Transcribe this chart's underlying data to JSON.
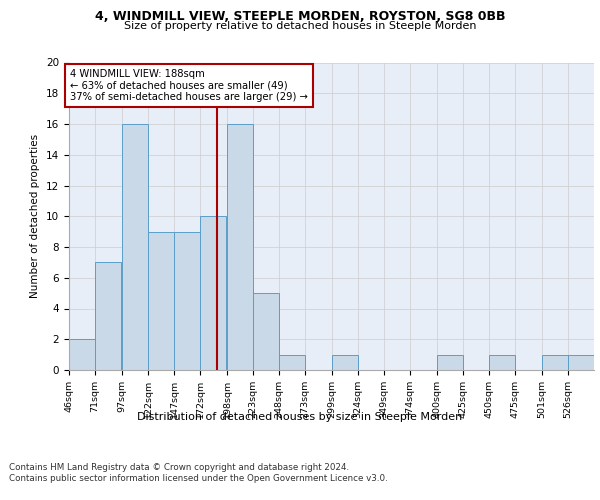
{
  "title1": "4, WINDMILL VIEW, STEEPLE MORDEN, ROYSTON, SG8 0BB",
  "title2": "Size of property relative to detached houses in Steeple Morden",
  "xlabel": "Distribution of detached houses by size in Steeple Morden",
  "ylabel": "Number of detached properties",
  "bins": [
    46,
    71,
    97,
    122,
    147,
    172,
    198,
    223,
    248,
    273,
    299,
    324,
    349,
    374,
    400,
    425,
    450,
    475,
    501,
    526,
    551
  ],
  "counts": [
    2,
    7,
    16,
    9,
    9,
    10,
    16,
    5,
    1,
    0,
    1,
    0,
    0,
    0,
    1,
    0,
    1,
    0,
    1,
    1
  ],
  "bar_color": "#c9d9e8",
  "bar_edge_color": "#5a9ec9",
  "grid_color": "#cccccc",
  "vline_x": 188,
  "vline_color": "#aa0000",
  "annotation_line1": "4 WINDMILL VIEW: 188sqm",
  "annotation_line2": "← 63% of detached houses are smaller (49)",
  "annotation_line3": "37% of semi-detached houses are larger (29) →",
  "annotation_box_color": "#aa0000",
  "ylim": [
    0,
    20
  ],
  "yticks": [
    0,
    2,
    4,
    6,
    8,
    10,
    12,
    14,
    16,
    18,
    20
  ],
  "footer1": "Contains HM Land Registry data © Crown copyright and database right 2024.",
  "footer2": "Contains public sector information licensed under the Open Government Licence v3.0.",
  "bg_color": "#e8eef8"
}
